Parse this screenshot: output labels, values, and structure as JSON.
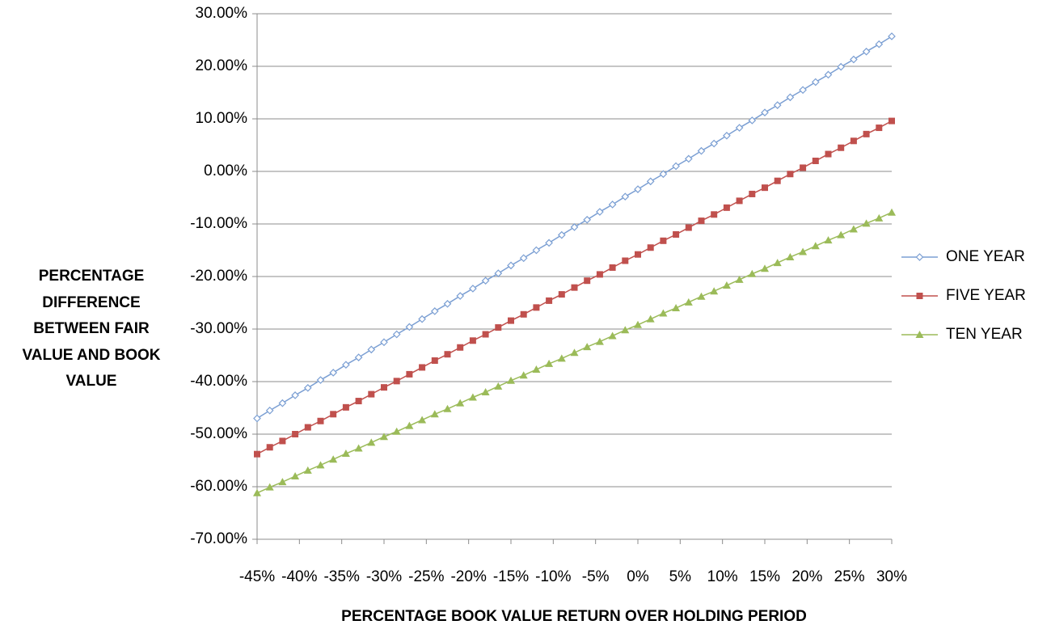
{
  "chart_data": {
    "type": "line",
    "xlabel": "PERCENTAGE BOOK VALUE RETURN OVER HOLDING PERIOD",
    "ylabel": "PERCENTAGE DIFFERENCE BETWEEN FAIR VALUE AND BOOK VALUE",
    "x": [
      -45,
      -43.5,
      -42,
      -40.5,
      -39,
      -37.5,
      -36,
      -34.5,
      -33,
      -31.5,
      -30,
      -28.5,
      -27,
      -25.5,
      -24,
      -22.5,
      -21,
      -19.5,
      -18,
      -16.5,
      -15,
      -13.5,
      -12,
      -10.5,
      -9,
      -7.5,
      -6,
      -4.5,
      -3,
      -1.5,
      0,
      1.5,
      3,
      4.5,
      6,
      7.5,
      9,
      10.5,
      12,
      13.5,
      15,
      16.5,
      18,
      19.5,
      21,
      22.5,
      24,
      25.5,
      27,
      28.5,
      30
    ],
    "series": [
      {
        "name": "ONE YEAR",
        "color": "#7b9fd3",
        "marker": "diamond",
        "values": [
          -47.0,
          -45.5,
          -44.1,
          -42.6,
          -41.2,
          -39.7,
          -38.3,
          -36.8,
          -35.4,
          -33.9,
          -32.5,
          -31.0,
          -29.6,
          -28.1,
          -26.6,
          -25.2,
          -23.7,
          -22.3,
          -20.8,
          -19.4,
          -17.9,
          -16.5,
          -15.0,
          -13.6,
          -12.1,
          -10.6,
          -9.2,
          -7.7,
          -6.3,
          -4.8,
          -3.4,
          -1.9,
          -0.5,
          1.0,
          2.4,
          3.9,
          5.3,
          6.8,
          8.3,
          9.7,
          11.2,
          12.6,
          14.1,
          15.5,
          17.0,
          18.4,
          19.9,
          21.3,
          22.8,
          24.2,
          25.7
        ]
      },
      {
        "name": "FIVE YEAR",
        "color": "#c0504d",
        "marker": "square",
        "values": [
          -53.8,
          -52.5,
          -51.3,
          -50.0,
          -48.7,
          -47.5,
          -46.2,
          -44.9,
          -43.7,
          -42.4,
          -41.1,
          -39.9,
          -38.6,
          -37.3,
          -36.0,
          -34.8,
          -33.5,
          -32.2,
          -31.0,
          -29.7,
          -28.4,
          -27.2,
          -25.9,
          -24.6,
          -23.4,
          -22.1,
          -20.8,
          -19.6,
          -18.3,
          -17.0,
          -15.8,
          -14.5,
          -13.2,
          -12.0,
          -10.7,
          -9.4,
          -8.2,
          -6.9,
          -5.6,
          -4.3,
          -3.1,
          -1.8,
          -0.5,
          0.7,
          2.0,
          3.3,
          4.5,
          5.8,
          7.1,
          8.3,
          9.6
        ]
      },
      {
        "name": "TEN YEAR",
        "color": "#9bbb59",
        "marker": "triangle",
        "values": [
          -61.2,
          -60.1,
          -59.1,
          -58.0,
          -56.9,
          -55.9,
          -54.8,
          -53.7,
          -52.7,
          -51.6,
          -50.5,
          -49.5,
          -48.4,
          -47.3,
          -46.2,
          -45.2,
          -44.1,
          -43.0,
          -42.0,
          -40.9,
          -39.8,
          -38.8,
          -37.7,
          -36.6,
          -35.6,
          -34.5,
          -33.4,
          -32.4,
          -31.3,
          -30.2,
          -29.2,
          -28.1,
          -27.0,
          -26.0,
          -24.9,
          -23.8,
          -22.8,
          -21.7,
          -20.6,
          -19.5,
          -18.5,
          -17.4,
          -16.3,
          -15.3,
          -14.2,
          -13.1,
          -12.1,
          -11.0,
          -9.9,
          -8.9,
          -7.8
        ]
      }
    ],
    "xlim": [
      -45,
      30
    ],
    "xticks": [
      {
        "value": -45,
        "label": "-45%"
      },
      {
        "value": -40,
        "label": "-40%"
      },
      {
        "value": -35,
        "label": "-35%"
      },
      {
        "value": -30,
        "label": "-30%"
      },
      {
        "value": -25,
        "label": "-25%"
      },
      {
        "value": -20,
        "label": "-20%"
      },
      {
        "value": -15,
        "label": "-15%"
      },
      {
        "value": -10,
        "label": "-10%"
      },
      {
        "value": -5,
        "label": "-5%"
      },
      {
        "value": 0,
        "label": "0%"
      },
      {
        "value": 5,
        "label": "5%"
      },
      {
        "value": 10,
        "label": "10%"
      },
      {
        "value": 15,
        "label": "15%"
      },
      {
        "value": 20,
        "label": "20%"
      },
      {
        "value": 25,
        "label": "25%"
      },
      {
        "value": 30,
        "label": "30%"
      }
    ],
    "ylim": [
      -70,
      30
    ],
    "yticks": [
      {
        "value": 30,
        "label": "30.00%"
      },
      {
        "value": 20,
        "label": "20.00%"
      },
      {
        "value": 10,
        "label": "10.00%"
      },
      {
        "value": 0,
        "label": "0.00%"
      },
      {
        "value": -10,
        "label": "-10.00%"
      },
      {
        "value": -20,
        "label": "-20.00%"
      },
      {
        "value": -30,
        "label": "-30.00%"
      },
      {
        "value": -40,
        "label": "-40.00%"
      },
      {
        "value": -50,
        "label": "-50.00%"
      },
      {
        "value": -60,
        "label": "-60.00%"
      },
      {
        "value": -70,
        "label": "-70.00%"
      }
    ],
    "grid": true,
    "legend": "right"
  }
}
